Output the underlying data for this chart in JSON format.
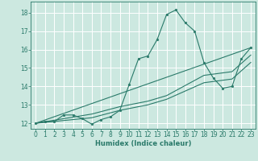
{
  "title": "",
  "xlabel": "Humidex (Indice chaleur)",
  "background_color": "#cce8e0",
  "grid_color": "#ffffff",
  "line_color": "#2a7a6a",
  "xlim": [
    -0.5,
    23.5
  ],
  "ylim": [
    11.7,
    18.6
  ],
  "yticks": [
    12,
    13,
    14,
    15,
    16,
    17,
    18
  ],
  "xticks": [
    0,
    1,
    2,
    3,
    4,
    5,
    6,
    7,
    8,
    9,
    10,
    11,
    12,
    13,
    14,
    15,
    16,
    17,
    18,
    19,
    20,
    21,
    22,
    23
  ],
  "lines": [
    {
      "x": [
        0,
        1,
        2,
        3,
        4,
        5,
        6,
        7,
        8,
        9,
        10,
        11,
        12,
        13,
        14,
        15,
        16,
        17,
        18,
        19,
        20,
        21,
        22,
        23
      ],
      "y": [
        12.0,
        12.1,
        12.1,
        12.45,
        12.45,
        12.25,
        11.95,
        12.2,
        12.35,
        12.7,
        14.1,
        15.5,
        15.65,
        16.55,
        17.9,
        18.15,
        17.45,
        17.0,
        15.3,
        14.45,
        13.9,
        14.0,
        15.5,
        16.1
      ],
      "marker": true
    },
    {
      "x": [
        0,
        23
      ],
      "y": [
        12.0,
        16.1
      ],
      "marker": false
    },
    {
      "x": [
        0,
        6,
        9,
        12,
        14,
        18,
        21,
        23
      ],
      "y": [
        12.0,
        12.5,
        12.9,
        13.2,
        13.5,
        14.6,
        14.8,
        15.7
      ],
      "marker": false
    },
    {
      "x": [
        0,
        6,
        9,
        12,
        14,
        18,
        21,
        23
      ],
      "y": [
        12.0,
        12.3,
        12.7,
        13.0,
        13.3,
        14.2,
        14.4,
        15.3
      ],
      "marker": false
    }
  ]
}
